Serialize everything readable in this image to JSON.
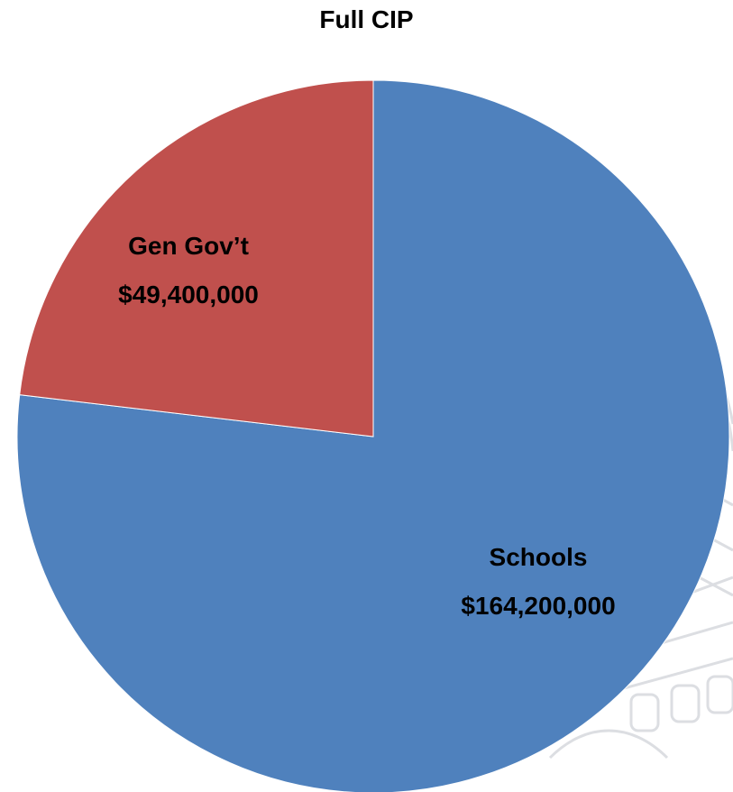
{
  "chart_data": {
    "type": "pie",
    "title": "Full CIP",
    "slices": [
      {
        "name": "Schools",
        "value_label": "$164,200,000",
        "value": 164200000,
        "color": "#4F81BD"
      },
      {
        "name": "Gen Gov’t",
        "value_label": "$49,400,000",
        "value": 49400000,
        "color": "#C0504D"
      }
    ],
    "start_angle_deg": 0,
    "direction": "clockwise",
    "legend": "none"
  }
}
